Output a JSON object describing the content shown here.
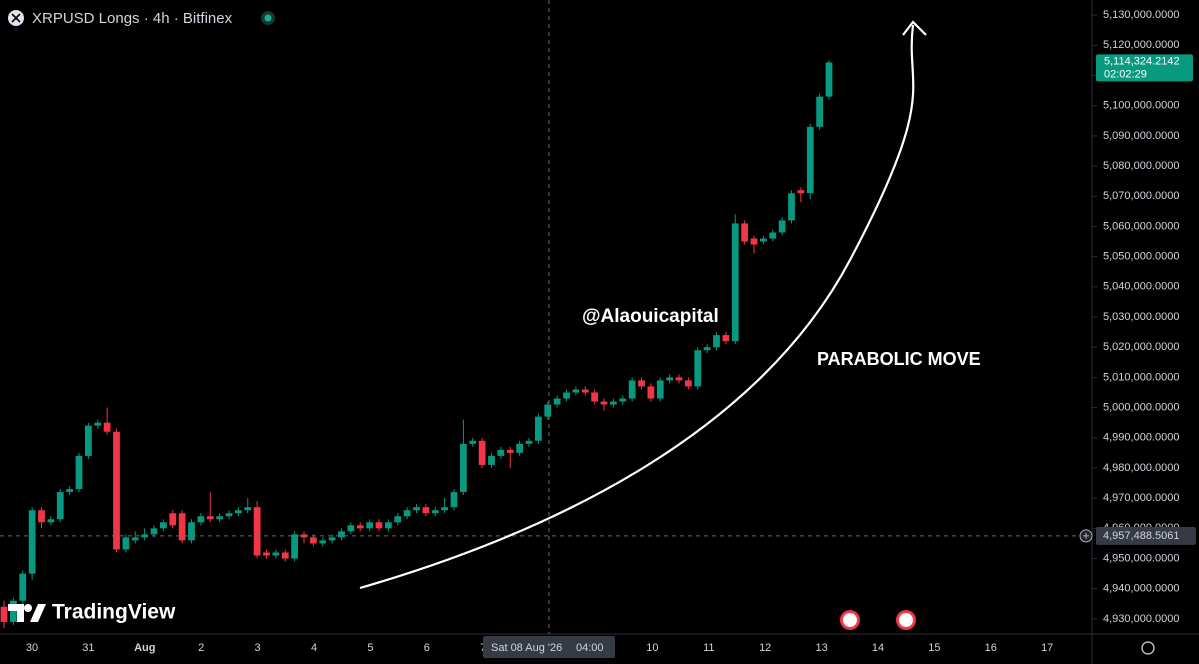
{
  "chart_data": {
    "type": "candlestick",
    "title": "XRPUSD Longs · 4h · Bitfinex",
    "annotations": [
      "@Alaouicapital",
      "PARABOLIC MOVE"
    ],
    "watermark": "TradingView",
    "up_color": "#089981",
    "down_color": "#f23645",
    "open": [
      4934000,
      4929000,
      4936000,
      4945000,
      4966000,
      4962000,
      4963000,
      4972000,
      4973000,
      4984000,
      4994000,
      4995000,
      4992000,
      4953000,
      4956000,
      4957000,
      4958000,
      4960000,
      4965000,
      4965000,
      4956000,
      4962000,
      4964000,
      4963000,
      4964000,
      4965000,
      4966000,
      4967000,
      4952000,
      4951000,
      4952000,
      4950000,
      4958000,
      4957000,
      4955000,
      4956000,
      4957000,
      4959000,
      4961000,
      4960000,
      4962000,
      4960000,
      4962000,
      4964000,
      4966000,
      4967000,
      4965000,
      4966000,
      4967000,
      4972000,
      4988000,
      4989000,
      4981000,
      4984000,
      4986000,
      4985000,
      4988000,
      4989000,
      4997000,
      5001000,
      5003000,
      5005000,
      5006000,
      5005000,
      5002000,
      5001000,
      5002000,
      5003000,
      5009000,
      5007000,
      5003000,
      5009000,
      5010000,
      5009000,
      5007000,
      5019000,
      5020000,
      5024000,
      5022000,
      5061000,
      5056000,
      5055000,
      5056000,
      5058000,
      5062000,
      5072000,
      5071000,
      5093000,
      5103000
    ],
    "high": [
      4936000,
      4937000,
      4946000,
      4967000,
      4967000,
      4964000,
      4973000,
      4974000,
      4985000,
      4995000,
      4996000,
      5000000,
      4993000,
      4958000,
      4959000,
      4960000,
      4961000,
      4963000,
      4966000,
      4966000,
      4963000,
      4965000,
      4972000,
      4965000,
      4966000,
      4967000,
      4970000,
      4969000,
      4953000,
      4953000,
      4953000,
      4959000,
      4959000,
      4958000,
      4957000,
      4958000,
      4960000,
      4962000,
      4962000,
      4963000,
      4963000,
      4963000,
      4965000,
      4967000,
      4968000,
      4968000,
      4967000,
      4970000,
      4973000,
      4996000,
      4990000,
      4990000,
      4985000,
      4987000,
      4987000,
      4989000,
      4990000,
      4998000,
      5002000,
      5004000,
      5006000,
      5007000,
      5007000,
      5006000,
      5003000,
      5003000,
      5004000,
      5010000,
      5010000,
      5008000,
      5010000,
      5011000,
      5011000,
      5010000,
      5020000,
      5021000,
      5025000,
      5025000,
      5064000,
      5062000,
      5057000,
      5057000,
      5059000,
      5063000,
      5072000,
      5073000,
      5094000,
      5104000,
      5115000
    ],
    "low": [
      4927000,
      4928000,
      4934000,
      4943000,
      4960000,
      4961000,
      4962000,
      4971000,
      4972000,
      4983000,
      4993000,
      4991000,
      4952000,
      4952000,
      4955000,
      4956000,
      4957000,
      4959000,
      4960000,
      4955000,
      4955000,
      4961000,
      4962000,
      4962000,
      4963000,
      4964000,
      4965000,
      4950000,
      4950000,
      4950000,
      4949000,
      4949000,
      4955000,
      4954000,
      4954000,
      4955000,
      4956000,
      4958000,
      4959000,
      4959000,
      4959000,
      4959000,
      4961000,
      4963000,
      4965000,
      4964000,
      4964000,
      4965000,
      4966000,
      4971000,
      4987000,
      4980000,
      4980000,
      4983000,
      4980000,
      4984000,
      4987000,
      4988000,
      4996000,
      5000000,
      5002000,
      5004000,
      5004000,
      5001000,
      4999000,
      5000000,
      5001000,
      5002000,
      5006000,
      5002000,
      5002000,
      5008000,
      5008000,
      5006000,
      5006000,
      5018000,
      5019000,
      5021000,
      5021000,
      5054000,
      5051000,
      5054000,
      5055000,
      5057000,
      5061000,
      5068000,
      5069000,
      5092000,
      5102000
    ],
    "close": [
      4929000,
      4936000,
      4945000,
      4966000,
      4962000,
      4963000,
      4972000,
      4973000,
      4984000,
      4994000,
      4995000,
      4992000,
      4953000,
      4957000,
      4957000,
      4958000,
      4960000,
      4962000,
      4961000,
      4956000,
      4962000,
      4964000,
      4963000,
      4964000,
      4965000,
      4966000,
      4967000,
      4951000,
      4951000,
      4952000,
      4950000,
      4958000,
      4957000,
      4955000,
      4956000,
      4957000,
      4959000,
      4961000,
      4960000,
      4962000,
      4960000,
      4962000,
      4964000,
      4966000,
      4967000,
      4965000,
      4966000,
      4967000,
      4972000,
      4988000,
      4989000,
      4981000,
      4984000,
      4986000,
      4985000,
      4988000,
      4989000,
      4997000,
      5001000,
      5003000,
      5005000,
      5006000,
      5005000,
      5002000,
      5001000,
      5002000,
      5003000,
      5009000,
      5007000,
      5003000,
      5009000,
      5010000,
      5009000,
      5007000,
      5019000,
      5020000,
      5024000,
      5022000,
      5061000,
      5055000,
      5054000,
      5056000,
      5058000,
      5062000,
      5071000,
      5071000,
      5093000,
      5103000,
      5114324.2142
    ],
    "last_price": {
      "value": 5114324.2142,
      "label": "5,114,324.2142"
    },
    "countdown": "02:02:29",
    "crosshair_price": {
      "value": 4957488.5061,
      "label": "4,957,488.5061"
    },
    "crosshair_date": "Sat 08 Aug '26",
    "crosshair_time": "04:00",
    "x_labels": [
      "30",
      "31",
      "Aug",
      "2",
      "3",
      "4",
      "5",
      "6",
      "7",
      "8",
      "9",
      "10",
      "11",
      "12",
      "13",
      "14",
      "15",
      "16",
      "17"
    ],
    "ylim": [
      4925000,
      5135000
    ],
    "yticks": [
      {
        "value": 4930000,
        "label": "4,930,000.0000"
      },
      {
        "value": 4940000,
        "label": "4,940,000.0000"
      },
      {
        "value": 4950000,
        "label": "4,950,000.0000"
      },
      {
        "value": 4960000,
        "label": "4,960,000.0000"
      },
      {
        "value": 4970000,
        "label": "4,970,000.0000"
      },
      {
        "value": 4980000,
        "label": "4,980,000.0000"
      },
      {
        "value": 4990000,
        "label": "4,990,000.0000"
      },
      {
        "value": 5000000,
        "label": "5,000,000.0000"
      },
      {
        "value": 5010000,
        "label": "5,010,000.0000"
      },
      {
        "value": 5020000,
        "label": "5,020,000.0000"
      },
      {
        "value": 5030000,
        "label": "5,030,000.0000"
      },
      {
        "value": 5040000,
        "label": "5,040,000.0000"
      },
      {
        "value": 5050000,
        "label": "5,050,000.0000"
      },
      {
        "value": 5060000,
        "label": "5,060,000.0000"
      },
      {
        "value": 5070000,
        "label": "5,070,000.0000"
      },
      {
        "value": 5080000,
        "label": "5,080,000.0000"
      },
      {
        "value": 5090000,
        "label": "5,090,000.0000"
      },
      {
        "value": 5100000,
        "label": "5,100,000.0000"
      },
      {
        "value": 5110000,
        "label": "5,110,000.0000"
      },
      {
        "value": 5120000,
        "label": "5,120,000.0000"
      },
      {
        "value": 5130000,
        "label": "5,130,000.0000"
      }
    ]
  }
}
